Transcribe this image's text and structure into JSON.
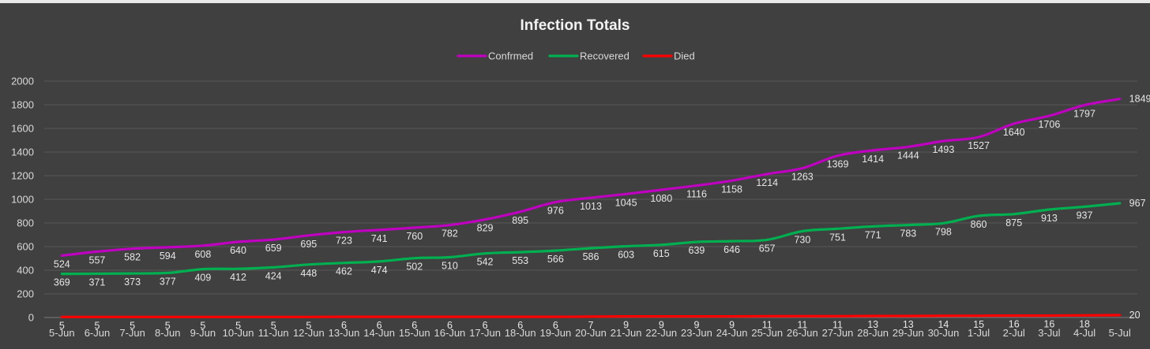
{
  "chart_data": {
    "type": "line",
    "title": "Infection Totals",
    "xlabel": "",
    "ylabel": "",
    "ylim": [
      0,
      2000
    ],
    "yticks": [
      0,
      200,
      400,
      600,
      800,
      1000,
      1200,
      1400,
      1600,
      1800,
      2000
    ],
    "grid": true,
    "legend": "top-center",
    "categories": [
      "5-Jun",
      "6-Jun",
      "7-Jun",
      "8-Jun",
      "9-Jun",
      "10-Jun",
      "11-Jun",
      "12-Jun",
      "13-Jun",
      "14-Jun",
      "15-Jun",
      "16-Jun",
      "17-Jun",
      "18-Jun",
      "19-Jun",
      "20-Jun",
      "21-Jun",
      "22-Jun",
      "23-Jun",
      "24-Jun",
      "25-Jun",
      "26-Jun",
      "27-Jun",
      "28-Jun",
      "29-Jun",
      "30-Jun",
      "1-Jul",
      "2-Jul",
      "3-Jul",
      "4-Jul",
      "5-Jul"
    ],
    "series": [
      {
        "name": "Confrmed",
        "color": "#c000c0",
        "values": [
          524,
          557,
          582,
          594,
          608,
          640,
          659,
          695,
          723,
          741,
          760,
          782,
          829,
          895,
          976,
          1013,
          1045,
          1080,
          1116,
          1158,
          1214,
          1263,
          1369,
          1414,
          1444,
          1493,
          1527,
          1640,
          1706,
          1797,
          1849
        ]
      },
      {
        "name": "Recovered",
        "color": "#00b050",
        "values": [
          369,
          371,
          373,
          377,
          409,
          412,
          424,
          448,
          462,
          474,
          502,
          510,
          542,
          553,
          566,
          586,
          603,
          615,
          639,
          646,
          657,
          730,
          751,
          771,
          783,
          798,
          860,
          875,
          913,
          937,
          967
        ]
      },
      {
        "name": "Died",
        "color": "#ff0000",
        "values": [
          5,
          5,
          5,
          5,
          5,
          5,
          5,
          5,
          6,
          6,
          6,
          6,
          6,
          6,
          6,
          7,
          9,
          9,
          9,
          9,
          11,
          11,
          11,
          13,
          13,
          14,
          15,
          16,
          16,
          18,
          20
        ]
      }
    ]
  }
}
